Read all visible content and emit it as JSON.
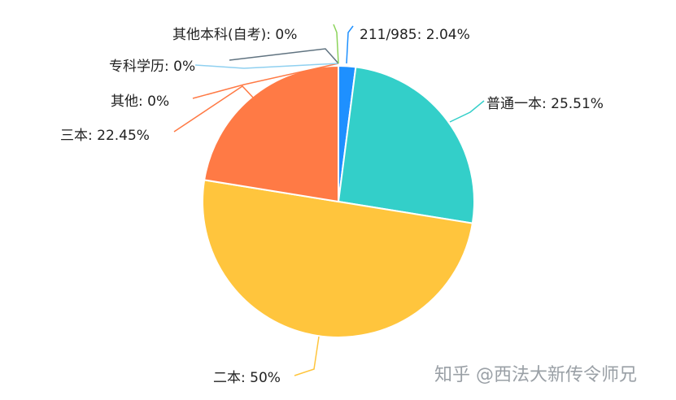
{
  "chart_data": {
    "type": "pie",
    "title": "",
    "slices": [
      {
        "name": "211/985",
        "label": "211/985: 2.04%",
        "value": 2.04,
        "color": "#1e90ff"
      },
      {
        "name": "普通一本",
        "label": "普通一本: 25.51%",
        "value": 25.51,
        "color": "#33cfc9"
      },
      {
        "name": "二本",
        "label": "二本: 50%",
        "value": 50,
        "color": "#ffc53d"
      },
      {
        "name": "三本",
        "label": "三本: 22.45%",
        "value": 22.45,
        "color": "#ff7a45"
      },
      {
        "name": "其他",
        "label": "其他: 0%",
        "value": 0,
        "color": "#ff7a45"
      },
      {
        "name": "专科学历",
        "label": "专科学历: 0%",
        "value": 0,
        "color": "#8fd0f0"
      },
      {
        "name": "其他本科(自考)",
        "label": "其他本科(自考): 0%",
        "value": 0,
        "color": "#607380"
      },
      {
        "name": "",
        "label": "",
        "value": 0,
        "color": "#8bd35a"
      }
    ],
    "legend": "none"
  },
  "watermark": "知乎 @西法大新传令师兄"
}
